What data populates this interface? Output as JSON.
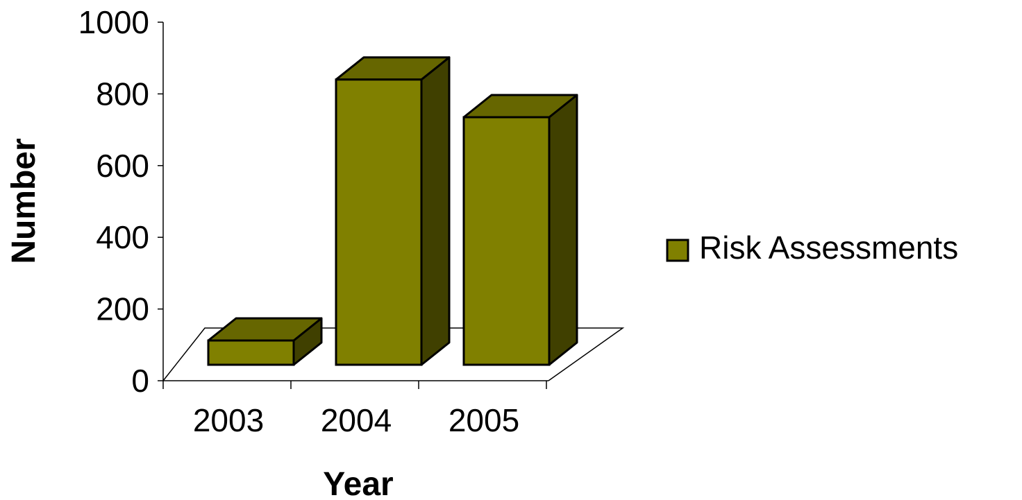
{
  "chart_data": {
    "type": "bar",
    "categories": [
      "2003",
      "2004",
      "2005"
    ],
    "series": [
      {
        "name": "Risk Assessments",
        "values": [
          70,
          840,
          735
        ]
      }
    ],
    "xlabel": "Year",
    "ylabel": "Number",
    "ylim": [
      0,
      1000
    ],
    "yticks": [
      "0",
      "200",
      "400",
      "600",
      "800",
      "1000"
    ],
    "grid": false,
    "legend_position": "right",
    "three_d": true,
    "colors": {
      "front": "#808000",
      "top": "#666600",
      "side": "#404000",
      "outline": "#000000",
      "floor_line": "#000000"
    }
  }
}
